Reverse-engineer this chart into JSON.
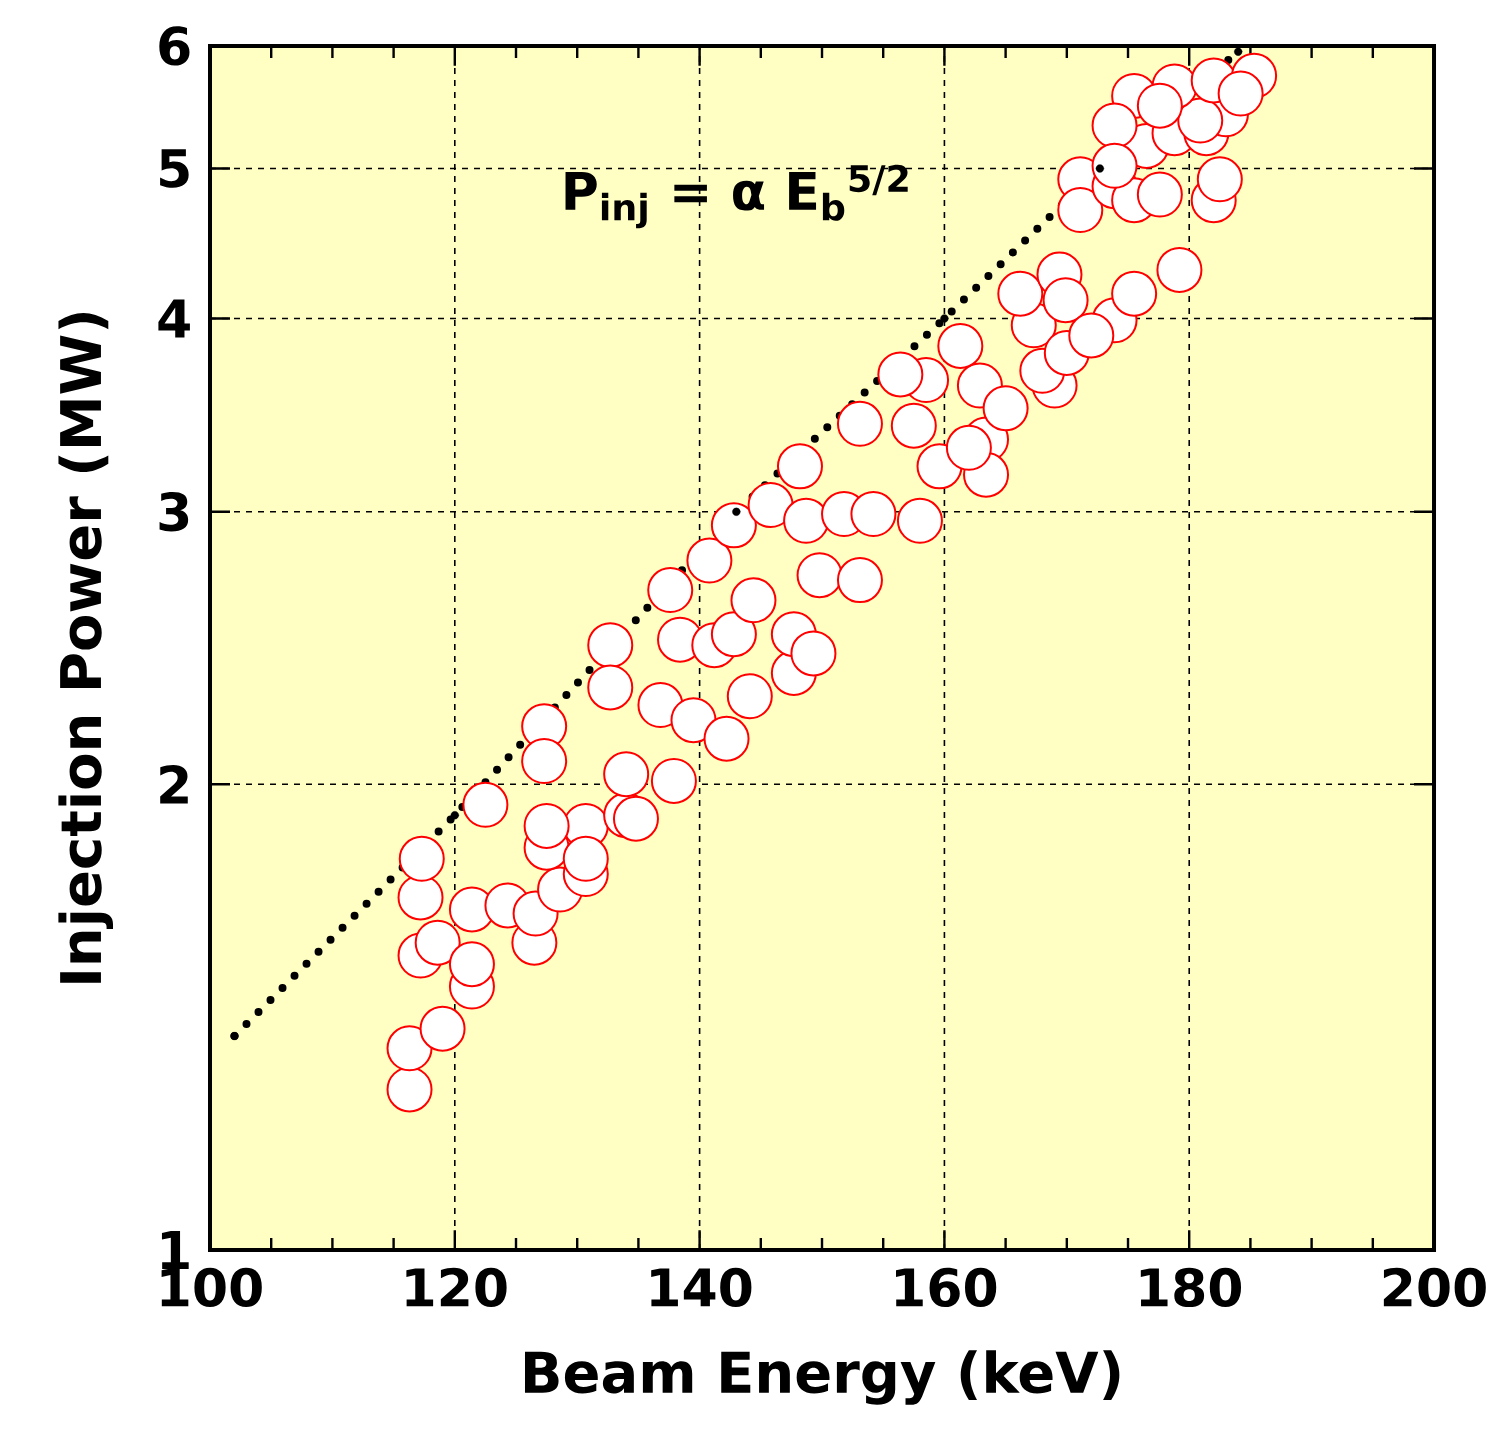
{
  "chart_data": {
    "type": "scatter",
    "xlabel": "Beam Energy (keV)",
    "ylabel": "Injection Power (MW)",
    "annotations": [
      "P$_{inj}$ = α E$_{b}$$^{5/2}$"
    ],
    "xlim": [
      100,
      200
    ],
    "ylim": [
      1,
      6
    ],
    "xticks": [
      100,
      120,
      140,
      160,
      180,
      200
    ],
    "yticks": [
      1,
      2,
      3,
      4,
      5,
      6
    ],
    "log": "y",
    "grid": true,
    "marker": "circle",
    "series": [
      {
        "color": "#ff0000",
        "x": [
          116.3,
          116.3,
          119,
          117.2,
          118.6,
          117.2,
          117.3,
          121.4,
          121.4,
          121.4,
          122.5,
          124.3,
          126.5,
          126.6,
          128.6,
          130.7,
          127.5,
          130.7,
          134,
          127.3,
          127.3,
          127.5,
          130.7,
          132.7,
          132.7,
          134,
          134.8,
          137.9,
          136.8,
          137.6,
          138.4,
          139.5,
          140.8,
          141.2,
          142.2,
          142.8,
          144.1,
          142.8,
          144.4,
          145.8,
          147.7,
          147.7,
          149.3,
          148.2,
          148.7,
          149.8,
          151.8,
          153.1,
          153.1,
          154.2,
          157.5,
          158,
          158.5,
          159.6,
          156.4,
          163.4,
          163.4,
          162.9,
          161.3,
          169,
          167.3,
          166.2,
          169.4,
          173.9,
          175.5,
          179.2,
          169.9,
          171.1,
          171.1,
          173.9,
          175.5,
          177.6,
          182,
          182.5,
          176.5,
          178.8,
          181.4,
          183,
          180.9,
          175.5,
          178.8,
          182,
          185.3,
          184.2,
          177.6,
          173.9,
          173.9,
          165,
          168,
          170,
          172,
          162
        ],
        "values": [
          1.27,
          1.35,
          1.39,
          1.55,
          1.58,
          1.69,
          1.79,
          1.66,
          1.48,
          1.53,
          1.94,
          1.67,
          1.58,
          1.65,
          1.71,
          1.75,
          1.82,
          1.88,
          1.91,
          2.18,
          2.07,
          1.88,
          1.79,
          2.46,
          2.31,
          2.03,
          1.9,
          2.01,
          2.25,
          2.67,
          2.48,
          2.2,
          2.79,
          2.46,
          2.14,
          2.5,
          2.28,
          2.94,
          2.63,
          3.03,
          2.36,
          2.5,
          2.43,
          3.21,
          2.96,
          2.73,
          2.99,
          3.42,
          2.71,
          2.99,
          3.41,
          2.96,
          3.65,
          3.21,
          3.68,
          3.34,
          3.17,
          3.62,
          3.84,
          3.62,
          3.96,
          4.15,
          4.27,
          3.99,
          4.15,
          4.3,
          4.11,
          4.92,
          4.7,
          4.87,
          4.77,
          4.81,
          4.77,
          4.92,
          5.17,
          5.27,
          5.27,
          5.42,
          5.37,
          5.57,
          5.65,
          5.7,
          5.74,
          5.59,
          5.49,
          5.33,
          5.02,
          3.5,
          3.7,
          3.8,
          3.9,
          3.3
        ]
      },
      {
        "type": "line",
        "color": "#000000",
        "line_style": "dotted",
        "x": [
          102,
          120,
          143,
          160,
          172.7,
          184
        ],
        "values": [
          1.375,
          1.91,
          3.0,
          4.0,
          5.0,
          5.95
        ]
      }
    ]
  }
}
